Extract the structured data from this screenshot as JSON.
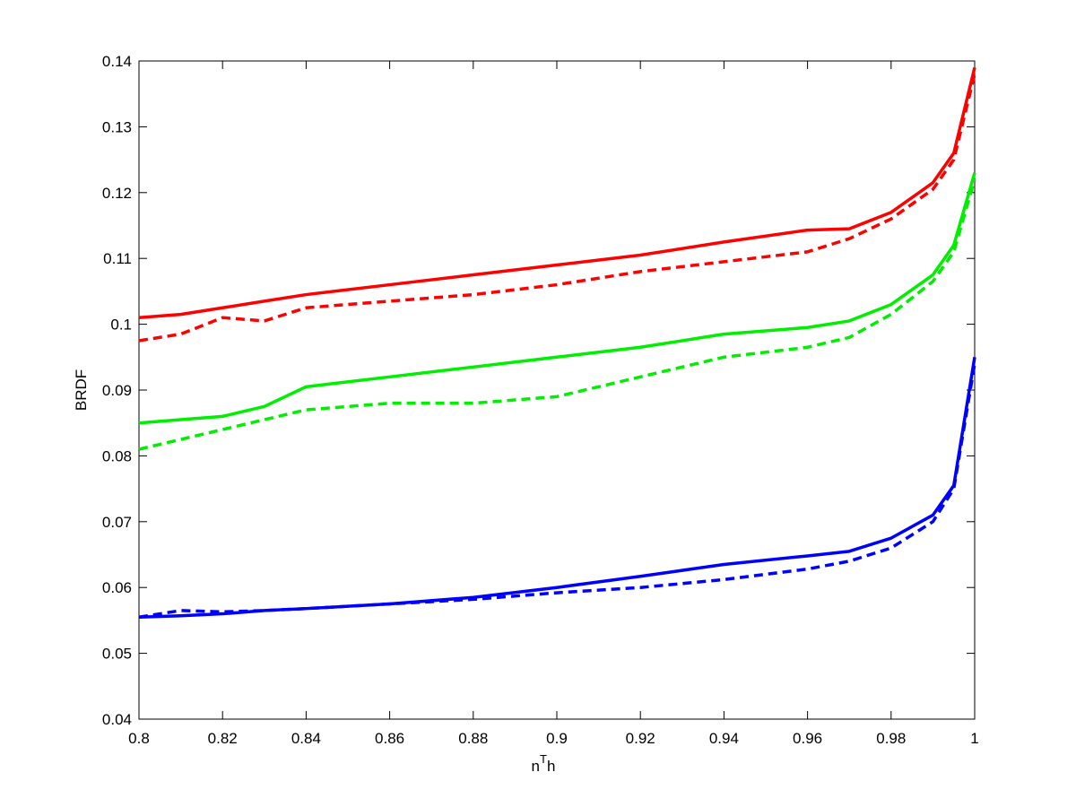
{
  "chart_data": {
    "type": "line",
    "xlabel": [
      "n",
      "T",
      "h"
    ],
    "ylabel": "BRDF",
    "x": [
      0.8,
      0.81,
      0.82,
      0.83,
      0.84,
      0.86,
      0.88,
      0.9,
      0.92,
      0.94,
      0.96,
      0.97,
      0.98,
      0.99,
      0.995,
      1.0
    ],
    "series": [
      {
        "color": "#ff0000",
        "dashed": false,
        "values": [
          0.101,
          0.1015,
          0.1025,
          0.1035,
          0.1045,
          0.106,
          0.1075,
          0.109,
          0.1105,
          0.1125,
          0.1143,
          0.1145,
          0.117,
          0.1215,
          0.126,
          0.139
        ]
      },
      {
        "color": "#ff0000",
        "dashed": true,
        "values": [
          0.0975,
          0.0985,
          0.101,
          0.1005,
          0.1025,
          0.1035,
          0.1045,
          0.106,
          0.108,
          0.1095,
          0.111,
          0.113,
          0.116,
          0.1205,
          0.125,
          0.138
        ]
      },
      {
        "color": "#00ee00",
        "dashed": false,
        "values": [
          0.085,
          0.0855,
          0.086,
          0.0875,
          0.0905,
          0.092,
          0.0935,
          0.095,
          0.0965,
          0.0985,
          0.0995,
          0.1005,
          0.103,
          0.1075,
          0.112,
          0.123
        ]
      },
      {
        "color": "#00ee00",
        "dashed": true,
        "values": [
          0.081,
          0.0825,
          0.084,
          0.0855,
          0.087,
          0.088,
          0.088,
          0.089,
          0.092,
          0.095,
          0.0965,
          0.098,
          0.1015,
          0.1065,
          0.111,
          0.122
        ]
      },
      {
        "color": "#0000ff",
        "dashed": false,
        "values": [
          0.0555,
          0.0557,
          0.056,
          0.0565,
          0.0568,
          0.0575,
          0.0585,
          0.06,
          0.0617,
          0.0635,
          0.0648,
          0.0655,
          0.0675,
          0.071,
          0.0755,
          0.095
        ]
      },
      {
        "color": "#0000ff",
        "dashed": true,
        "values": [
          0.0555,
          0.0565,
          0.0563,
          0.0565,
          0.0568,
          0.0575,
          0.0582,
          0.0592,
          0.06,
          0.0612,
          0.0628,
          0.064,
          0.066,
          0.07,
          0.075,
          0.094
        ]
      }
    ],
    "xlim": [
      0.8,
      1
    ],
    "xticks": [
      0.8,
      0.82,
      0.84,
      0.86,
      0.88,
      0.9,
      0.92,
      0.94,
      0.96,
      0.98,
      1
    ],
    "ylim": [
      0.04,
      0.14
    ],
    "yticks": [
      0.04,
      0.05,
      0.06,
      0.07,
      0.08,
      0.09,
      0.1,
      0.11,
      0.12,
      0.13,
      0.14
    ],
    "grid": false
  }
}
